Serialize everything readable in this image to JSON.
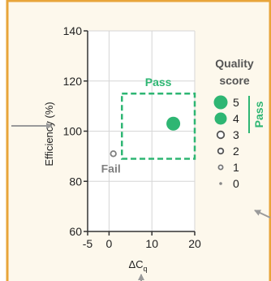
{
  "colors": {
    "panel_background": "#fdf8ec",
    "panel_border": "#e8a53a",
    "accent_green": "#2eb673",
    "fail_gray": "#808080",
    "axis": "#333333",
    "grid": "#d6d6d6",
    "pointer_arrow": "#9a9a9a"
  },
  "chart_data": {
    "type": "scatter",
    "xlabel_base": "ΔC",
    "xlabel_sub": "q",
    "ylabel": "Efficiency (%)",
    "xlim": [
      -5,
      20
    ],
    "ylim": [
      60,
      140
    ],
    "x_ticks": [
      -5,
      0,
      10,
      20
    ],
    "y_ticks": [
      60,
      80,
      100,
      120,
      140
    ],
    "grid": true,
    "points": [
      {
        "x": 15,
        "y": 103,
        "score": 5,
        "color": "#2eb673"
      },
      {
        "x": 1,
        "y": 91,
        "score": 2,
        "color": "#808080"
      }
    ],
    "pass_region": {
      "label": "Pass",
      "x": [
        3,
        20
      ],
      "y": [
        89,
        115
      ]
    },
    "annotations": [
      {
        "text": "Fail",
        "x": 1,
        "y": 91
      }
    ],
    "legend": {
      "title_line1": "Quality",
      "title_line2": "score",
      "placement": "right",
      "pass_label": "Pass",
      "items": [
        {
          "label": "5",
          "score": 5,
          "filled": true,
          "color": "#2eb673"
        },
        {
          "label": "4",
          "score": 4,
          "filled": true,
          "color": "#2eb673"
        },
        {
          "label": "3",
          "score": 3,
          "filled": false,
          "color": "#555555"
        },
        {
          "label": "2",
          "score": 2,
          "filled": false,
          "color": "#555555"
        },
        {
          "label": "1",
          "score": 1,
          "filled": false,
          "color": "#777777"
        },
        {
          "label": "0",
          "score": 0,
          "filled": true,
          "color": "#888888"
        }
      ]
    }
  }
}
